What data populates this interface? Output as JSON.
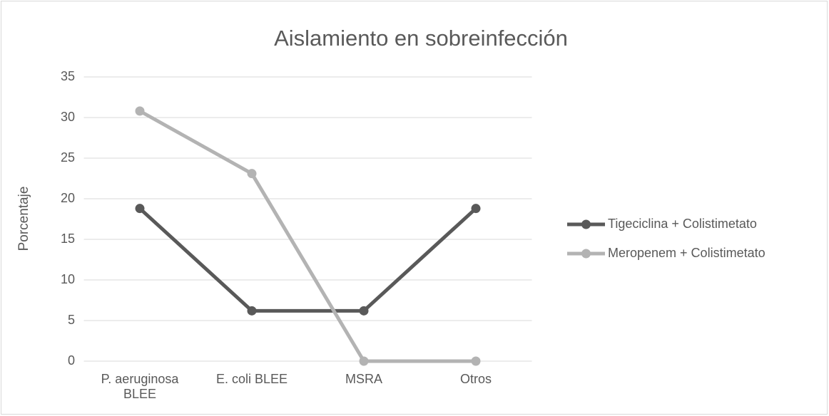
{
  "chart_data": {
    "type": "line",
    "title": "Aislamiento en sobreinfección",
    "y_label": "Porcentaje",
    "categories": [
      "P. aeruginosa BLEE",
      "E. coli BLEE",
      "MSRA",
      "Otros"
    ],
    "series": [
      {
        "name": "Tigeciclina + Colistimetato",
        "color": "#595959",
        "values": [
          18.8,
          6.2,
          6.2,
          18.8
        ]
      },
      {
        "name": "Meropenem + Colistimetato",
        "color": "#b3b3b3",
        "values": [
          30.8,
          23.1,
          0,
          0
        ]
      }
    ],
    "ylim": [
      0,
      35
    ],
    "yticks": [
      0,
      5,
      10,
      15,
      20,
      25,
      30,
      35
    ],
    "grid": true,
    "legend": "right"
  }
}
